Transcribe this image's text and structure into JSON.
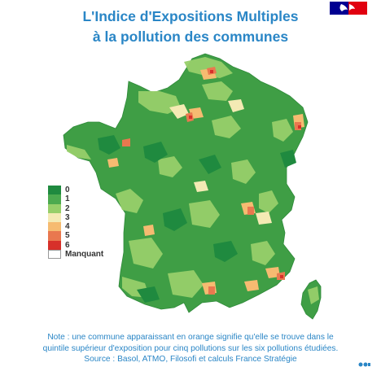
{
  "title": {
    "line1": "L'Indice d'Expositions Multiples",
    "line2": "à la pollution des communes"
  },
  "legend": {
    "items": [
      {
        "label": "0",
        "color": "#1f8a3f"
      },
      {
        "label": "1",
        "color": "#4caa4f"
      },
      {
        "label": "2",
        "color": "#97cf6a"
      },
      {
        "label": "3",
        "color": "#f4eab4"
      },
      {
        "label": "4",
        "color": "#f6bb71"
      },
      {
        "label": "5",
        "color": "#e9784f"
      },
      {
        "label": "6",
        "color": "#d7302a"
      }
    ],
    "missing_label": "Manquant"
  },
  "map": {
    "land_color": "#3f9e45",
    "dark_green": "#1f8a3f",
    "light_green": "#97cf6a",
    "pale_yellow": "#f4eab4",
    "orange": "#f6bb71",
    "red_orange": "#e9784f"
  },
  "note": {
    "line1": "Note : une commune apparaissant en orange signifie qu'elle se trouve dans le",
    "line2": "quintile supérieur d'exposition pour cinq pollutions sur les six pollutions étudiées.",
    "line3": "Source : Basol, ATMO, Filosofi et calculs France Stratégie"
  },
  "colors": {
    "title_blue": "#2a86c6",
    "flag_blue": "#000091",
    "flag_red": "#e1000f"
  }
}
